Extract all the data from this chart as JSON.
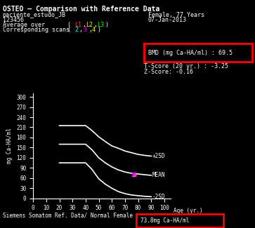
{
  "title": "OSTEO – Comparison with Reference Data",
  "patient_name": "paciente_estudo_JB",
  "patient_id": "123456",
  "gender_age": "Female, 77 Years",
  "date": "07-Jan-2013",
  "avg_over_label": "Average over",
  "avg_over_parens": "( ",
  "avg_L1": "L1",
  "avg_comma1": ", ",
  "avg_L2": "L2",
  "avg_comma2": ", ",
  "avg_L3": "L3",
  "avg_close": ")",
  "corr_scans_label": "Corresponding scans",
  "corr_open": "( ",
  "corr_2": "2",
  "corr_comma1": ",",
  "corr_3": "3",
  "corr_comma2": ",",
  "corr_4": "4",
  "corr_close": " )",
  "bmd_label": "BMD (mg Ca-HA/ml) : 69.5",
  "tscore_label": "T-Score (20 yr.) : -3.25",
  "zscore_label": "Z-Score: -0.16",
  "ylabel": "mg Ca-HA/ml",
  "xlabel": "Age (yr.)",
  "bottom_text_pre": "Siemens Somatom Ref. Data/ Normal Female ",
  "bottom_text_box": "73.8mg Ca-HA/ml",
  "background_color": "#000000",
  "text_color": "#ffffff",
  "axis_color": "#ffffff",
  "title_color": "#ffffff",
  "L1_color": "#ff4444",
  "L2_color": "#ffff00",
  "L3_color": "#00ff00",
  "scan2_color": "#00ffff",
  "scan3_color": "#ff00ff",
  "scan4_color": "#ffff00",
  "plus2sd_x": [
    20,
    25,
    30,
    35,
    40,
    45,
    50,
    55,
    60,
    65,
    70,
    75,
    80,
    85,
    90
  ],
  "plus2sd_y": [
    215,
    215,
    215,
    215,
    215,
    200,
    182,
    168,
    155,
    148,
    140,
    135,
    130,
    127,
    125
  ],
  "mean_x": [
    20,
    25,
    30,
    35,
    40,
    45,
    50,
    55,
    60,
    65,
    70,
    75,
    80,
    85,
    90
  ],
  "mean_y": [
    160,
    160,
    160,
    160,
    160,
    143,
    120,
    105,
    93,
    84,
    78,
    74,
    72,
    70,
    68
  ],
  "minus2sd_x": [
    20,
    25,
    30,
    35,
    40,
    45,
    50,
    55,
    60,
    65,
    70,
    75,
    80,
    85,
    90
  ],
  "minus2sd_y": [
    105,
    105,
    105,
    105,
    105,
    85,
    58,
    42,
    30,
    20,
    14,
    10,
    8,
    6,
    5
  ],
  "patient_point_x": 77,
  "patient_point_y": 69.5,
  "patient_point_color": "#ff00ff",
  "patient_point_color2": "#ffff00",
  "ylim": [
    0,
    310
  ],
  "xlim": [
    0,
    105
  ],
  "yticks": [
    0,
    30,
    60,
    90,
    120,
    150,
    180,
    210,
    240,
    270,
    300
  ],
  "xticks": [
    0,
    10,
    20,
    30,
    40,
    50,
    60,
    70,
    80,
    90,
    100
  ],
  "line_color": "#ffffff",
  "label_plus2sd": "+2SD",
  "label_mean": "MEAN",
  "label_minus2sd": "-2SD",
  "bmd_box_color": "#ff0000",
  "bottom_box_color": "#ff0000"
}
